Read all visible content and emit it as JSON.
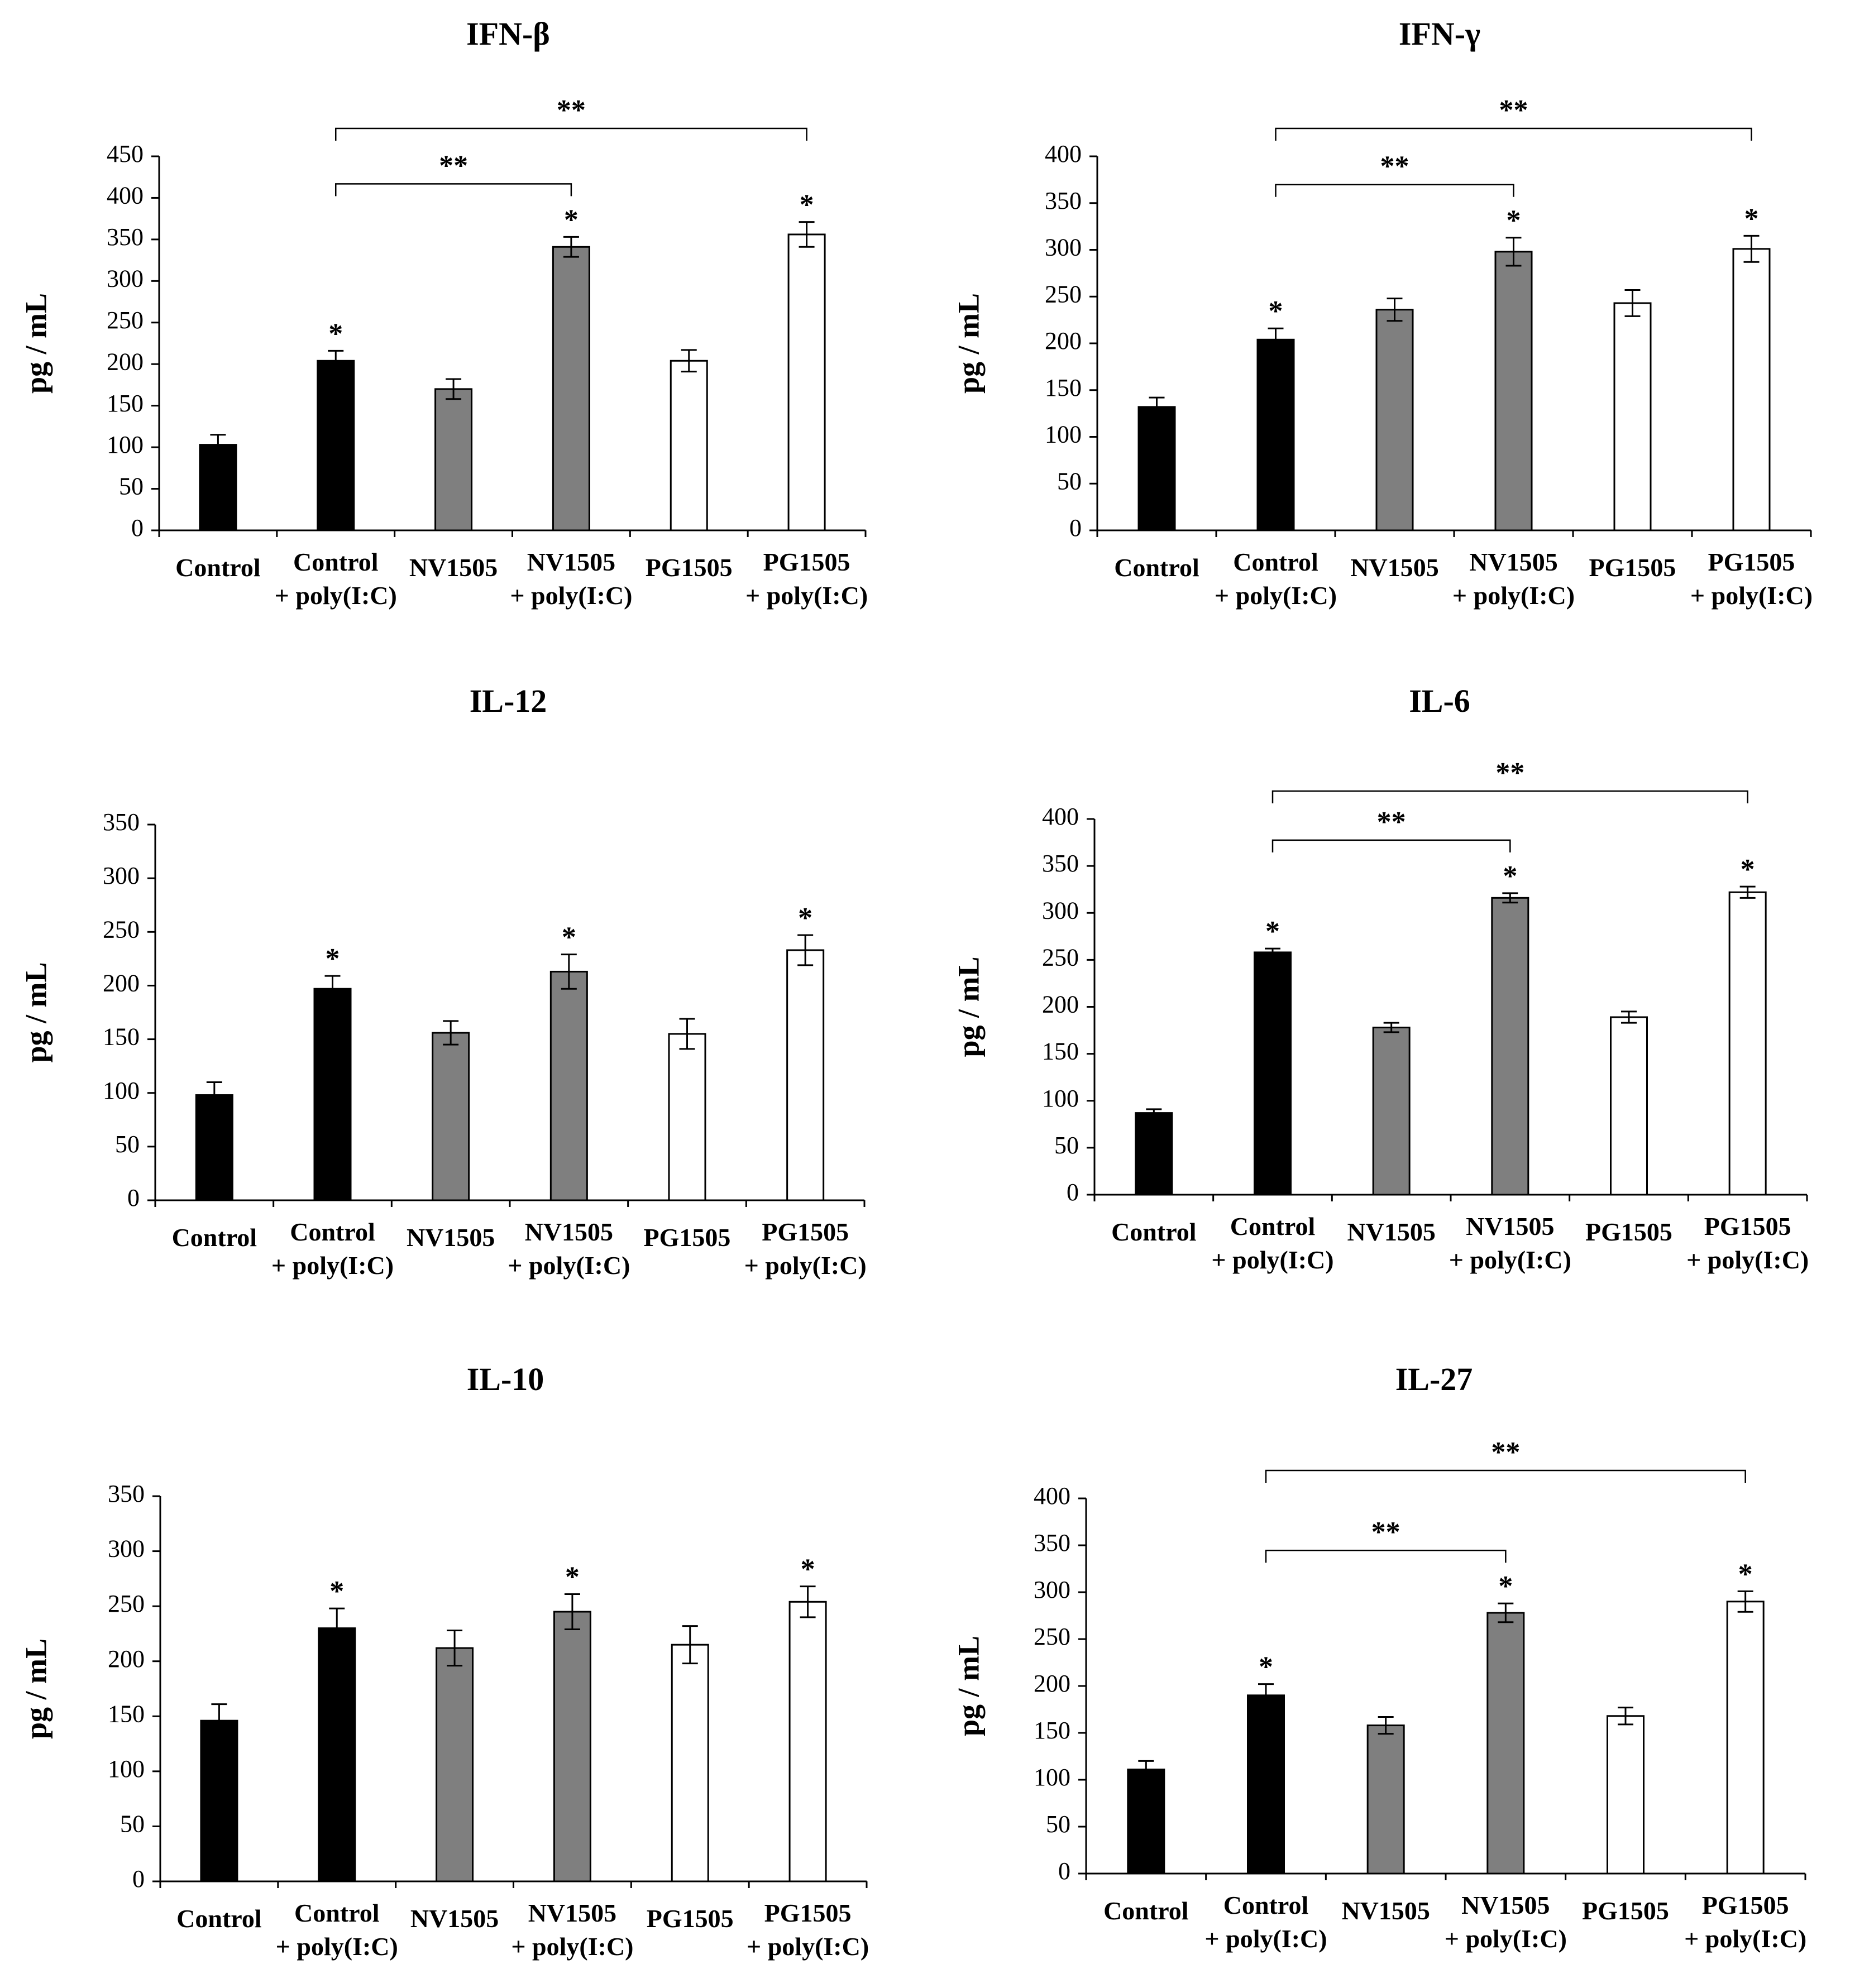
{
  "categories": [
    "Control",
    "Control\n+ poly(I:C)",
    "NV1505",
    "NV1505\n+ poly(I:C)",
    "PG1505",
    "PG1505\n+ poly(I:C)"
  ],
  "ylabel": "pg / mL",
  "colors": {
    "black": "#000000",
    "gray": "#7f7f7f",
    "white": "#ffffff",
    "stroke": "#000000"
  },
  "bar_color_keys": [
    "black",
    "black",
    "gray",
    "gray",
    "white",
    "white"
  ],
  "single_marker": "*",
  "double_marker": "**",
  "chart_data": [
    {
      "type": "bar",
      "title": "IFN-β",
      "ylabel": "pg / mL",
      "ylim": [
        0,
        450
      ],
      "yticks": [
        0,
        50,
        100,
        150,
        200,
        250,
        300,
        350,
        400,
        450
      ],
      "categories": [
        "Control",
        "Control\n+ poly(I:C)",
        "NV1505",
        "NV1505\n+ poly(I:C)",
        "PG1505",
        "PG1505\n+ poly(I:C)"
      ],
      "values": [
        103,
        204,
        170,
        341,
        204,
        356
      ],
      "errors": [
        12,
        12,
        12,
        12,
        13,
        15
      ],
      "single_star": [
        false,
        true,
        false,
        true,
        false,
        true
      ],
      "brackets": [
        {
          "from": 1,
          "to": 3,
          "label": "**"
        },
        {
          "from": 1,
          "to": 5,
          "label": "**"
        }
      ]
    },
    {
      "type": "bar",
      "title": "IFN-γ",
      "ylabel": "pg / mL",
      "ylim": [
        0,
        400
      ],
      "yticks": [
        0,
        50,
        100,
        150,
        200,
        250,
        300,
        350,
        400
      ],
      "categories": [
        "Control",
        "Control\n+ poly(I:C)",
        "NV1505",
        "NV1505\n+ poly(I:C)",
        "PG1505",
        "PG1505\n+ poly(I:C)"
      ],
      "values": [
        132,
        204,
        236,
        298,
        243,
        301
      ],
      "errors": [
        10,
        12,
        12,
        15,
        14,
        14
      ],
      "single_star": [
        false,
        true,
        false,
        true,
        false,
        true
      ],
      "brackets": [
        {
          "from": 1,
          "to": 3,
          "label": "**"
        },
        {
          "from": 1,
          "to": 5,
          "label": "**"
        }
      ]
    },
    {
      "type": "bar",
      "title": "IL-12",
      "ylabel": "pg / mL",
      "ylim": [
        0,
        350
      ],
      "yticks": [
        0,
        50,
        100,
        150,
        200,
        250,
        300,
        350
      ],
      "categories": [
        "Control",
        "Control\n+ poly(I:C)",
        "NV1505",
        "NV1505\n+ poly(I:C)",
        "PG1505",
        "PG1505\n+ poly(I:C)"
      ],
      "values": [
        98,
        197,
        156,
        213,
        155,
        233
      ],
      "errors": [
        12,
        12,
        11,
        16,
        14,
        14
      ],
      "single_star": [
        false,
        true,
        false,
        true,
        false,
        true
      ],
      "brackets": []
    },
    {
      "type": "bar",
      "title": "IL-6",
      "ylabel": "pg / mL",
      "ylim": [
        0,
        400
      ],
      "yticks": [
        0,
        50,
        100,
        150,
        200,
        250,
        300,
        350,
        400
      ],
      "categories": [
        "Control",
        "Control\n+ poly(I:C)",
        "NV1505",
        "NV1505\n+ poly(I:C)",
        "PG1505",
        "PG1505\n+ poly(I:C)"
      ],
      "values": [
        87,
        258,
        178,
        316,
        189,
        322
      ],
      "errors": [
        4,
        4,
        5,
        5,
        6,
        6
      ],
      "single_star": [
        false,
        true,
        false,
        true,
        false,
        true
      ],
      "brackets": [
        {
          "from": 1,
          "to": 3,
          "label": "**"
        },
        {
          "from": 1,
          "to": 5,
          "label": "**"
        }
      ]
    },
    {
      "type": "bar",
      "title": "IL-10",
      "ylabel": "pg / mL",
      "ylim": [
        0,
        350
      ],
      "yticks": [
        0,
        50,
        100,
        150,
        200,
        250,
        300,
        350
      ],
      "categories": [
        "Control",
        "Control\n+ poly(I:C)",
        "NV1505",
        "NV1505\n+ poly(I:C)",
        "PG1505",
        "PG1505\n+ poly(I:C)"
      ],
      "values": [
        146,
        230,
        212,
        245,
        215,
        254
      ],
      "errors": [
        15,
        18,
        16,
        16,
        17,
        14
      ],
      "single_star": [
        false,
        true,
        false,
        true,
        false,
        true
      ],
      "brackets": []
    },
    {
      "type": "bar",
      "title": "IL-27",
      "ylabel": "pg / mL",
      "ylim": [
        0,
        400
      ],
      "yticks": [
        0,
        50,
        100,
        150,
        200,
        250,
        300,
        350,
        400
      ],
      "categories": [
        "Control",
        "Control\n+ poly(I:C)",
        "NV1505",
        "NV1505\n+ poly(I:C)",
        "PG1505",
        "PG1505\n+ poly(I:C)"
      ],
      "values": [
        111,
        190,
        158,
        278,
        168,
        290
      ],
      "errors": [
        9,
        12,
        9,
        10,
        9,
        11
      ],
      "single_star": [
        false,
        true,
        false,
        true,
        false,
        true
      ],
      "brackets": [
        {
          "from": 1,
          "to": 3,
          "label": "**"
        },
        {
          "from": 1,
          "to": 5,
          "label": "**"
        }
      ]
    }
  ]
}
